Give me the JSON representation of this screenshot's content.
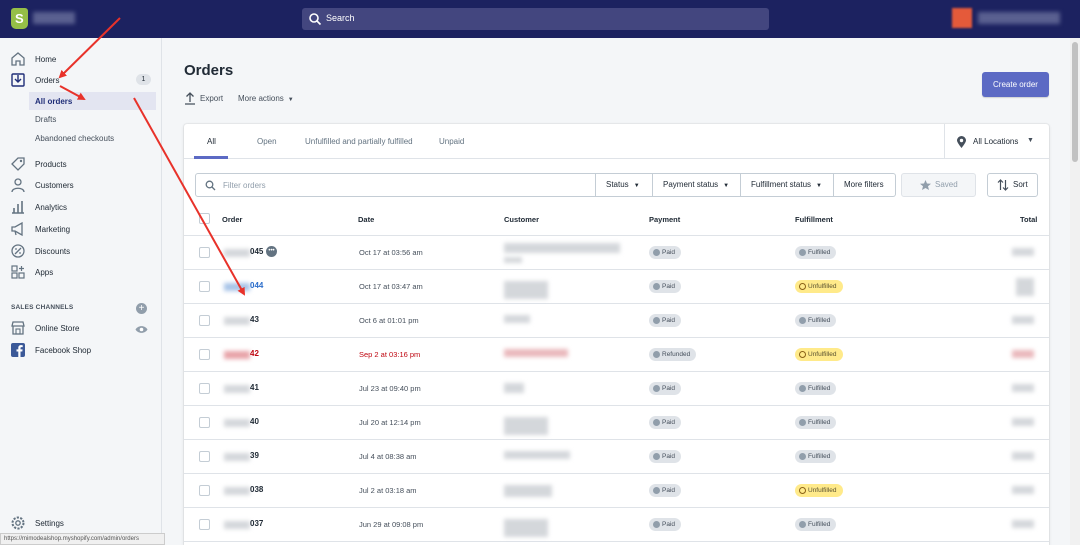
{
  "topbar": {
    "search_label": "Search",
    "logo_icon": "shopify-bag-icon"
  },
  "sidebar": {
    "items": [
      {
        "label": "Home",
        "icon": "home-icon"
      },
      {
        "label": "Orders",
        "icon": "orders-icon",
        "badge": "1"
      },
      {
        "label": "Products",
        "icon": "tag-icon"
      },
      {
        "label": "Customers",
        "icon": "person-icon"
      },
      {
        "label": "Analytics",
        "icon": "bar-chart-icon"
      },
      {
        "label": "Marketing",
        "icon": "megaphone-icon"
      },
      {
        "label": "Discounts",
        "icon": "discount-icon"
      },
      {
        "label": "Apps",
        "icon": "apps-icon"
      }
    ],
    "order_subitems": [
      {
        "label": "All orders",
        "active": true
      },
      {
        "label": "Drafts"
      },
      {
        "label": "Abandoned checkouts"
      }
    ],
    "sales_channels_title": "SALES CHANNELS",
    "channels": [
      {
        "label": "Online Store",
        "icon": "store-icon"
      },
      {
        "label": "Facebook Shop",
        "icon": "facebook-icon"
      }
    ],
    "settings_label": "Settings",
    "status_url": "https://mimodealshop.myshopify.com/admin/orders"
  },
  "page": {
    "title": "Orders",
    "export_label": "Export",
    "more_actions_label": "More actions",
    "create_order_label": "Create order"
  },
  "tabs": [
    {
      "label": "All",
      "active": true
    },
    {
      "label": "Open"
    },
    {
      "label": "Unfulfilled and partially fulfilled"
    },
    {
      "label": "Unpaid"
    }
  ],
  "location_label": "All Locations",
  "filters": {
    "placeholder": "Filter orders",
    "status": "Status",
    "payment_status": "Payment status",
    "fulfillment_status": "Fulfillment status",
    "more_filters": "More filters",
    "saved": "Saved",
    "sort": "Sort"
  },
  "table": {
    "columns": [
      "Order",
      "Date",
      "Customer",
      "Payment",
      "Fulfillment",
      "Total"
    ],
    "rows": [
      {
        "order": "045",
        "date": "Oct 17 at 03:56 am",
        "payment": "Paid",
        "fulfillment": "Fulfilled",
        "has_note": true
      },
      {
        "order": "044",
        "date": "Oct 17 at 03:47 am",
        "payment": "Paid",
        "fulfillment": "Unfulfilled"
      },
      {
        "order": "43",
        "date": "Oct 6 at 01:01 pm",
        "payment": "Paid",
        "fulfillment": "Fulfilled"
      },
      {
        "order": "42",
        "date": "Sep 2 at 03:16 pm",
        "payment": "Refunded",
        "fulfillment": "Unfulfilled",
        "refunded": true
      },
      {
        "order": "41",
        "date": "Jul 23 at 09:40 pm",
        "payment": "Paid",
        "fulfillment": "Fulfilled"
      },
      {
        "order": "40",
        "date": "Jul 20 at 12:14 pm",
        "payment": "Paid",
        "fulfillment": "Fulfilled"
      },
      {
        "order": "39",
        "date": "Jul 4 at 08:38 am",
        "payment": "Paid",
        "fulfillment": "Fulfilled"
      },
      {
        "order": "038",
        "date": "Jul 2 at 03:18 am",
        "payment": "Paid",
        "fulfillment": "Unfulfilled"
      },
      {
        "order": "037",
        "date": "Jun 29 at 09:08 pm",
        "payment": "Paid",
        "fulfillment": "Fulfilled"
      }
    ]
  },
  "colors": {
    "topbar": "#1c2260",
    "accent": "#5c6ac4",
    "annotation_arrow": "#e8322a"
  }
}
